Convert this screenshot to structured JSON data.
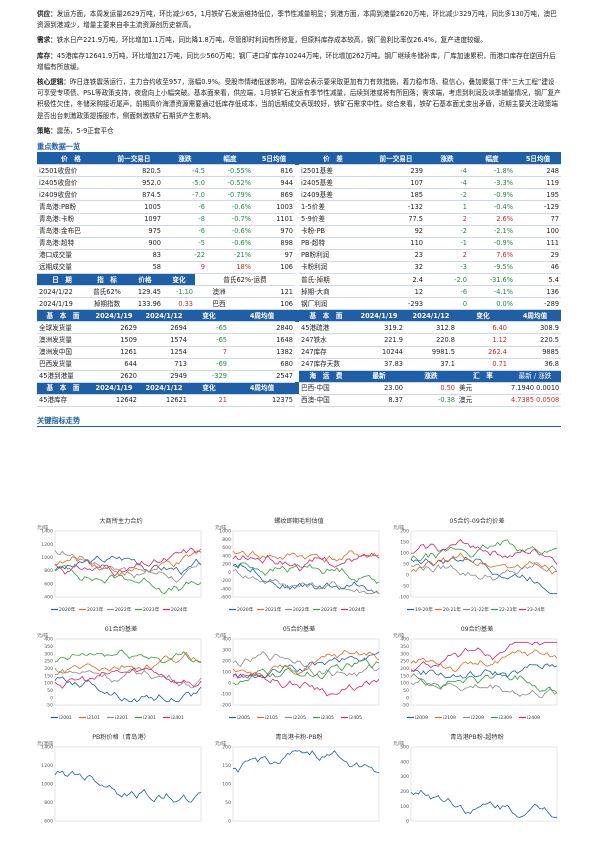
{
  "paragraphs": {
    "supply": {
      "label": "供应：",
      "text": "发运方面，本周发运量2629万吨，环比减少65，1月铁矿石发运维持低位，季节性减量明显；到港方面，本周到港量2620万吨，环比减少329万吨，同比多130万吨，澳巴资源到港减少，增量主要来自非主流资源创历史新高。"
    },
    "demand": {
      "label": "需求：",
      "text": "铁水日产221.9万吨，环比增加1.1万吨，同比降1.8万吨，尽管即时利润有所修复，但原料库存成本较高，钢厂盈利比率仅26.4%，复产进度较缓。"
    },
    "stock": {
      "label": "库存：",
      "text": "45港库存12641.9万吨，环比增加21万吨，同比少560万吨；钢厂进口矿库存10244万吨，环比增加262万吨。钢厂继续冬储补库，厂库加速累积，而港口库存在逆回升后增幅有所放缓。"
    },
    "core": {
      "label": "核心逻辑：",
      "text": "昨日连铁震荡运行，主力合约收至957，涨幅0.9%。受股市情绪低迷影响，国常会表示要采取更加有力有效措施，着力稳市场、稳信心，叠加聚氨丁伴“三大工程”建设可享受专项债、PSL等政策支持，夜盘向上小幅突破。基本面来看，供应端，1月铁矿石发运有季节性减量，后续到港或将有所回落；需求端，考虑到利润及淡季铺量情况，钢厂复产积极性欠佳，冬储采购接近尾声，前期高价海漂资源需要通过低库存低成本，当前远期成交表现较好，铁矿石需求中性。综合来看，铁矿石基本面尤变出矛盾，近期主要关注政策端是否出台刺激政策提振股市，侧面刺激铁矿石期货产生影响。"
    },
    "strategy": {
      "label": "策略：",
      "text": "震荡，5-9正套平仓"
    }
  },
  "key_data_title": "重点数据一览",
  "price_table": {
    "headers_left": [
      "价　格",
      "前一交易日",
      "涨跌",
      "幅度",
      "5日均值"
    ],
    "headers_right": [
      "价　差",
      "前一交易日",
      "涨跌",
      "幅度",
      "5日均值"
    ],
    "rows_left": [
      [
        "i2501收盘价",
        "820.5",
        "-4.5",
        "-0.55%",
        "816"
      ],
      [
        "i2405收盘价",
        "952.0",
        "-5.0",
        "-0.52%",
        "944"
      ],
      [
        "i2409收盘价",
        "874.5",
        "-7.0",
        "-0.79%",
        "869"
      ],
      [
        "青岛港:PB粉",
        "1005",
        "-6",
        "-0.6%",
        "1003"
      ],
      [
        "青岛港:卡粉",
        "1097",
        "-8",
        "-0.7%",
        "1101"
      ],
      [
        "青岛港:金布巴",
        "975",
        "-6",
        "-0.6%",
        "970"
      ],
      [
        "青岛港:超特",
        "900",
        "-5",
        "-0.6%",
        "898"
      ],
      [
        "港口成交量",
        "83",
        "-22",
        "-21%",
        "97"
      ],
      [
        "远期成交量",
        "58",
        "9",
        "18%",
        "106"
      ]
    ],
    "rows_right": [
      [
        "i2501基差",
        "239",
        "-4",
        "-1.8%",
        "248"
      ],
      [
        "i2405基差",
        "107",
        "-4",
        "-3.3%",
        "119"
      ],
      [
        "i2409基差",
        "185",
        "-2",
        "-0.9%",
        "195"
      ],
      [
        "1-5价差",
        "-132",
        "1",
        "-0.4%",
        "-129"
      ],
      [
        "5-9价差",
        "77.5",
        "2",
        "2.6%",
        "77"
      ],
      [
        "卡粉-PB",
        "92",
        "-2",
        "-2.1%",
        "100"
      ],
      [
        "PB-超特",
        "110",
        "-1",
        "-0.9%",
        "111"
      ],
      [
        "PB粉利润",
        "23",
        "2",
        "7.6%",
        "29"
      ],
      [
        "卡粉利润",
        "32",
        "-3",
        "-9.5%",
        "46"
      ]
    ],
    "signs_left": [
      -1,
      -1,
      -1,
      -1,
      -1,
      -1,
      -1,
      -1,
      1
    ],
    "signs_right": [
      -1,
      -1,
      -1,
      -1,
      1,
      -1,
      -1,
      1,
      -1
    ]
  },
  "index_table": {
    "headers": [
      "日　期",
      "指　标",
      "价格",
      "变化",
      "指　标",
      "价格",
      "变化"
    ],
    "right_headers": [
      "普氏62%-运费",
      "",
      "",
      "",
      "",
      "价格"
    ],
    "rows": [
      [
        "2024/1/22",
        "普氏62%",
        "129.45",
        "-1.10",
        "澳洲",
        "121"
      ],
      [
        "2024/1/19",
        "掉期指数",
        "133.96",
        "0.33",
        "巴西",
        "106"
      ]
    ],
    "right_block_headers": [
      "普氏-掉期",
      "2.4",
      "-2.0",
      "-31.6%",
      "5.4"
    ],
    "right_block_rows": [
      [
        "掉期-大商",
        "12",
        "-6",
        "-4.1%",
        "136"
      ],
      [
        "钢厂利润",
        "-293",
        "0",
        "0.0%",
        "-289"
      ]
    ]
  },
  "fund_table": {
    "headers_left": [
      "基　本　面",
      "2024/1/19",
      "2024/1/12",
      "变化",
      "4周均值"
    ],
    "headers_right": [
      "基　本　面",
      "2024/1/19",
      "2024/1/12",
      "变化",
      "4周均值"
    ],
    "rows_left": [
      [
        "全球发货量",
        "2629",
        "2694",
        "-65",
        "2840"
      ],
      [
        "澳洲发货量",
        "1509",
        "1574",
        "-65",
        "1648"
      ],
      [
        "澳洲发中国",
        "1261",
        "1254",
        "7",
        "1382"
      ],
      [
        "巴西发货量",
        "644",
        "713",
        "-69",
        "680"
      ],
      [
        "45港到港量",
        "2620",
        "2949",
        "-329",
        "2547"
      ]
    ],
    "signs_left": [
      -1,
      -1,
      1,
      -1,
      -1
    ],
    "rows_right": [
      [
        "45港疏港",
        "319.2",
        "312.8",
        "6.40",
        "308.9"
      ],
      [
        "247铁水",
        "221.9",
        "220.8",
        "1.12",
        "220.5"
      ],
      [
        "247库存",
        "10244",
        "9981.5",
        "262.4",
        "9885"
      ],
      [
        "247库存天数",
        "37.83",
        "37.1",
        "0.71",
        "36.8"
      ]
    ],
    "signs_right": [
      1,
      1,
      1,
      1
    ]
  },
  "stock_row": {
    "headers": [
      "基　本　面",
      "2024/1/19",
      "2024/1/12",
      "变化",
      "4周均值"
    ],
    "row": [
      "45港库存",
      "12642",
      "12621",
      "21",
      "12375"
    ]
  },
  "freight": {
    "headers": [
      "海　运　费",
      "最新",
      "涨跌"
    ],
    "rows": [
      [
        "巴西-中国",
        "23.00",
        "0.50"
      ],
      [
        "西澳-中国",
        "8.37",
        "-0.38"
      ]
    ],
    "signs": [
      1,
      -1
    ]
  },
  "fx": {
    "headers": [
      "汇　率",
      "最新",
      "涨跌"
    ],
    "rows": [
      [
        "美元",
        "7.1940",
        "0.0010"
      ],
      [
        "澳元",
        "4.7385",
        "0.0508"
      ]
    ]
  },
  "indicator_title": "关键指标走势",
  "charts": [
    {
      "title": "大商所主力合约",
      "unit": "元/吨",
      "yticks": [
        "1400",
        "1200",
        "1000",
        "800",
        "600",
        "400"
      ],
      "legend": [
        "2020年",
        "2021年",
        "2022年",
        "2023年",
        "2024年"
      ]
    },
    {
      "title": "螺纹即期毛利估值",
      "unit": "元/吨",
      "yticks": [
        "1000",
        "800",
        "600",
        "400",
        "200",
        "0",
        "-200",
        "-400",
        "-600"
      ],
      "legend": [
        "2020年",
        "2021年",
        "2022年",
        "2023年",
        "2024年"
      ]
    },
    {
      "title": "05合约-09合约价差",
      "unit": "元/吨",
      "yticks": [
        "200",
        "150",
        "100",
        "50",
        "0",
        "-50",
        "-100"
      ],
      "legend": [
        "19-20年",
        "20-21年",
        "21-22年",
        "22-23年",
        "23-24年"
      ]
    },
    {
      "title": "01合约基差",
      "unit": "元/吨",
      "yticks": [
        "400",
        "350",
        "300",
        "250",
        "200",
        "150",
        "100",
        "50",
        "0",
        "-50"
      ],
      "legend": [
        "i2001",
        "i2101",
        "i2201",
        "i2301",
        "i2401"
      ]
    },
    {
      "title": "05合约基差",
      "unit": "元/吨",
      "yticks": [
        "400",
        "300",
        "200",
        "100",
        "0",
        "-100",
        "-200"
      ],
      "legend": [
        "i2005",
        "i2105",
        "i2205",
        "i2305",
        "i2405"
      ]
    },
    {
      "title": "09合约基差",
      "unit": "元/吨",
      "yticks": [
        "400",
        "350",
        "300",
        "250",
        "200",
        "150",
        "100",
        "50",
        "0",
        "-50"
      ],
      "legend": [
        "i2009",
        "i2109",
        "i2209",
        "i2309",
        "i2409"
      ]
    },
    {
      "title": "PB粉价格（青岛港）",
      "unit": "元/湿吨",
      "yticks": [
        "1400",
        "1200",
        "1000",
        "800",
        "600"
      ],
      "legend": []
    },
    {
      "title": "青岛港卡粉-PB粉",
      "unit": "元/吨",
      "yticks": [
        "200",
        "150",
        "100",
        "50",
        "0"
      ],
      "legend": []
    },
    {
      "title": "青岛港PB粉-超特粉",
      "unit": "元/吨",
      "yticks": [
        "500",
        "400",
        "300",
        "200",
        "100",
        "0"
      ],
      "legend": []
    }
  ],
  "series_colors": [
    "#1f5fa8",
    "#e06b1d",
    "#8a8a8a",
    "#2e9e3c",
    "#d8226b"
  ]
}
